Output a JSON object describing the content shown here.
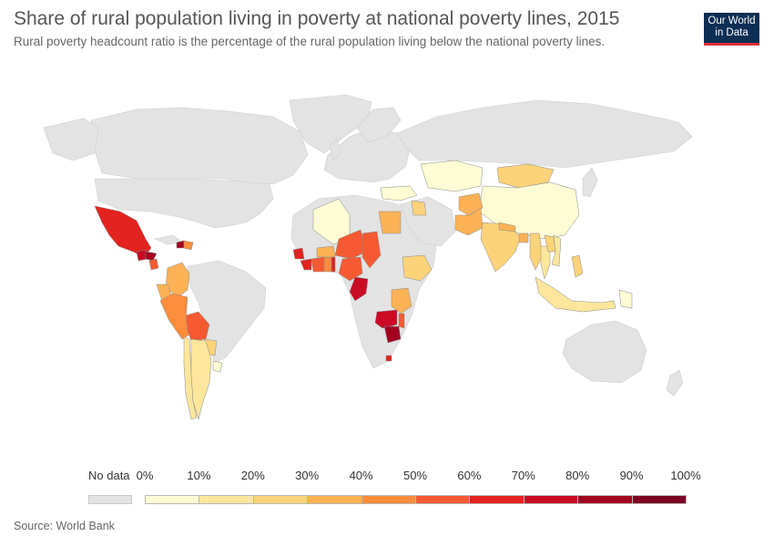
{
  "header": {
    "title": "Share of rural population living in poverty at national poverty lines, 2015",
    "subtitle": "Rural poverty headcount ratio is the percentage of the rural population living below the national poverty lines."
  },
  "logo": {
    "line1": "Our World",
    "line2": "in Data"
  },
  "legend": {
    "nodata_label": "No data",
    "nodata_color": "#e3e3e3",
    "ticks": [
      "0%",
      "10%",
      "20%",
      "30%",
      "40%",
      "50%",
      "60%",
      "70%",
      "80%",
      "90%",
      "100%"
    ],
    "colors": [
      "#fefcd4",
      "#fee79c",
      "#fdd37a",
      "#fdb256",
      "#fb8d3c",
      "#f65a32",
      "#e3231f",
      "#c90b24",
      "#a3021f",
      "#7a0326"
    ]
  },
  "source": "Source: World Bank",
  "map_regions": [
    {
      "name": "Mexico",
      "bin": 6
    },
    {
      "name": "Guatemala",
      "bin": 7
    },
    {
      "name": "Honduras",
      "bin": 8
    },
    {
      "name": "Nicaragua",
      "bin": 5
    },
    {
      "name": "Haiti",
      "bin": 8
    },
    {
      "name": "Dominican Republic",
      "bin": 4
    },
    {
      "name": "Colombia",
      "bin": 3
    },
    {
      "name": "Ecuador",
      "bin": 3
    },
    {
      "name": "Peru",
      "bin": 4
    },
    {
      "name": "Bolivia",
      "bin": 5
    },
    {
      "name": "Paraguay",
      "bin": 2
    },
    {
      "name": "Uruguay",
      "bin": 0
    },
    {
      "name": "Chile",
      "bin": 1
    },
    {
      "name": "Argentina",
      "bin": 1
    },
    {
      "name": "Algeria",
      "bin": 0
    },
    {
      "name": "Egypt",
      "bin": 3
    },
    {
      "name": "Niger",
      "bin": 5
    },
    {
      "name": "Chad",
      "bin": 5
    },
    {
      "name": "Nigeria",
      "bin": 5
    },
    {
      "name": "Sierra Leone",
      "bin": 6
    },
    {
      "name": "Liberia",
      "bin": 6
    },
    {
      "name": "Cote d'Ivoire",
      "bin": 5
    },
    {
      "name": "Ghana",
      "bin": 4
    },
    {
      "name": "Burkina Faso",
      "bin": 3
    },
    {
      "name": "Togo",
      "bin": 6
    },
    {
      "name": "Ethiopia",
      "bin": 2
    },
    {
      "name": "Tanzania",
      "bin": 3
    },
    {
      "name": "Malawi",
      "bin": 5
    },
    {
      "name": "Zambia",
      "bin": 7
    },
    {
      "name": "Congo",
      "bin": 7
    },
    {
      "name": "Zimbabwe",
      "bin": 8
    },
    {
      "name": "Eswatini",
      "bin": 6
    },
    {
      "name": "Kazakhstan",
      "bin": 0
    },
    {
      "name": "Mongolia",
      "bin": 2
    },
    {
      "name": "China",
      "bin": 0
    },
    {
      "name": "Turkey",
      "bin": 0
    },
    {
      "name": "Iraq",
      "bin": 2
    },
    {
      "name": "Afghanistan",
      "bin": 3
    },
    {
      "name": "Pakistan",
      "bin": 3
    },
    {
      "name": "India",
      "bin": 2
    },
    {
      "name": "Nepal",
      "bin": 3
    },
    {
      "name": "Bangladesh",
      "bin": 3
    },
    {
      "name": "Myanmar",
      "bin": 2
    },
    {
      "name": "Thailand",
      "bin": 1
    },
    {
      "name": "Laos",
      "bin": 2
    },
    {
      "name": "Vietnam",
      "bin": 1
    },
    {
      "name": "Philippines",
      "bin": 2
    },
    {
      "name": "Indonesia",
      "bin": 1
    },
    {
      "name": "Papua New Guinea",
      "bin": 0
    },
    {
      "name": "Russia",
      "bin": -1
    },
    {
      "name": "United States",
      "bin": -1
    },
    {
      "name": "Canada",
      "bin": -1
    },
    {
      "name": "Brazil",
      "bin": -1
    },
    {
      "name": "Australia",
      "bin": -1
    }
  ]
}
